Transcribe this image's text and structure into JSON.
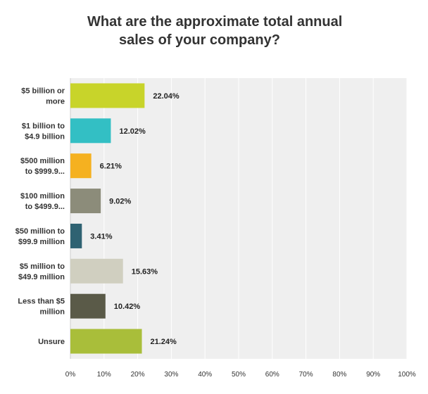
{
  "title_lines": [
    "What are the approximate total annual",
    "sales of your company?"
  ],
  "colors": {
    "plot_bg": "#efefef",
    "gridline": "#ffffff",
    "text": "#333333"
  },
  "chart_data": {
    "type": "bar",
    "orientation": "horizontal",
    "title": "What are the approximate total annual sales of your company?",
    "categories": [
      [
        "$5 billion or",
        "more"
      ],
      [
        "$1 billion to",
        "$4.9 billion"
      ],
      [
        "$500 million",
        "to $999.9..."
      ],
      [
        "$100 million",
        "to $499.9..."
      ],
      [
        "$50 million to",
        "$99.9 million"
      ],
      [
        "$5 million to",
        "$49.9 million"
      ],
      [
        "Less than $5",
        "million"
      ],
      [
        "Unsure"
      ]
    ],
    "values": [
      22.04,
      12.02,
      6.21,
      9.02,
      3.41,
      15.63,
      10.42,
      21.24
    ],
    "value_labels": [
      "22.04%",
      "12.02%",
      "6.21%",
      "9.02%",
      "3.41%",
      "15.63%",
      "10.42%",
      "21.24%"
    ],
    "bar_colors": [
      "#c8d42a",
      "#33bfc4",
      "#f5b120",
      "#8c8c7a",
      "#2f6272",
      "#d0cfc0",
      "#5a5a48",
      "#a9be3a"
    ],
    "xticks": [
      "0%",
      "10%",
      "20%",
      "30%",
      "40%",
      "50%",
      "60%",
      "70%",
      "80%",
      "90%",
      "100%"
    ],
    "xlim": [
      0,
      100
    ],
    "grid": true,
    "legend": "none"
  }
}
